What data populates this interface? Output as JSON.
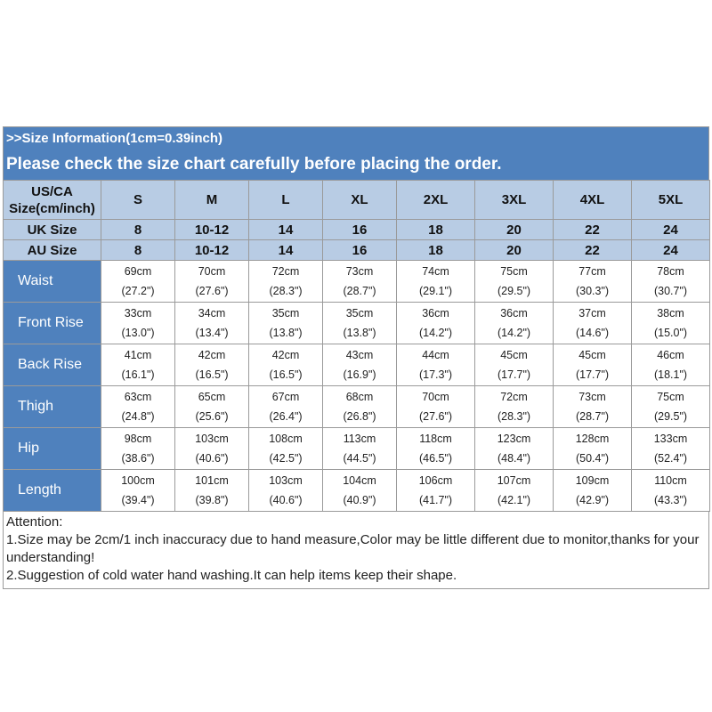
{
  "header": {
    "info_line": ">>Size Information(1cm=0.39inch)",
    "notice_line": "Please check the size chart carefully before placing the order."
  },
  "size_rows": [
    {
      "label": "US/CA\nSize(cm/inch)",
      "values": [
        "S",
        "M",
        "L",
        "XL",
        "2XL",
        "3XL",
        "4XL",
        "5XL"
      ]
    },
    {
      "label": "UK Size",
      "values": [
        "8",
        "10-12",
        "14",
        "16",
        "18",
        "20",
        "22",
        "24"
      ]
    },
    {
      "label": "AU Size",
      "values": [
        "8",
        "10-12",
        "14",
        "16",
        "18",
        "20",
        "22",
        "24"
      ]
    }
  ],
  "measurements": [
    {
      "label": "Waist",
      "cm": [
        "69cm",
        "70cm",
        "72cm",
        "73cm",
        "74cm",
        "75cm",
        "77cm",
        "78cm"
      ],
      "inch": [
        "(27.2\")",
        "(27.6\")",
        "(28.3\")",
        "(28.7\")",
        "(29.1\")",
        "(29.5\")",
        "(30.3\")",
        "(30.7\")"
      ]
    },
    {
      "label": "Front Rise",
      "cm": [
        "33cm",
        "34cm",
        "35cm",
        "35cm",
        "36cm",
        "36cm",
        "37cm",
        "38cm"
      ],
      "inch": [
        "(13.0\")",
        "(13.4\")",
        "(13.8\")",
        "(13.8\")",
        "(14.2\")",
        "(14.2\")",
        "(14.6\")",
        "(15.0\")"
      ]
    },
    {
      "label": "Back Rise",
      "cm": [
        "41cm",
        "42cm",
        "42cm",
        "43cm",
        "44cm",
        "45cm",
        "45cm",
        "46cm"
      ],
      "inch": [
        "(16.1\")",
        "(16.5\")",
        "(16.5\")",
        "(16.9\")",
        "(17.3\")",
        "(17.7\")",
        "(17.7\")",
        "(18.1\")"
      ]
    },
    {
      "label": "Thigh",
      "cm": [
        "63cm",
        "65cm",
        "67cm",
        "68cm",
        "70cm",
        "72cm",
        "73cm",
        "75cm"
      ],
      "inch": [
        "(24.8\")",
        "(25.6\")",
        "(26.4\")",
        "(26.8\")",
        "(27.6\")",
        "(28.3\")",
        "(28.7\")",
        "(29.5\")"
      ]
    },
    {
      "label": "Hip",
      "cm": [
        "98cm",
        "103cm",
        "108cm",
        "113cm",
        "118cm",
        "123cm",
        "128cm",
        "133cm"
      ],
      "inch": [
        "(38.6\")",
        "(40.6\")",
        "(42.5\")",
        "(44.5\")",
        "(46.5\")",
        "(48.4\")",
        "(50.4\")",
        "(52.4\")"
      ]
    },
    {
      "label": "Length",
      "cm": [
        "100cm",
        "101cm",
        "103cm",
        "104cm",
        "106cm",
        "107cm",
        "109cm",
        "110cm"
      ],
      "inch": [
        "(39.4\")",
        "(39.8\")",
        "(40.6\")",
        "(40.9\")",
        "(41.7\")",
        "(42.1\")",
        "(42.9\")",
        "(43.3\")"
      ]
    }
  ],
  "notes": {
    "title": "Attention:",
    "line1": "1.Size may be 2cm/1 inch inaccuracy due to hand measure,Color may be little different due to monitor,thanks for your understanding!",
    "line2": "2.Suggestion of cold water hand washing.It can help items keep their shape."
  },
  "colors": {
    "header_blue": "#4f81bd",
    "size_row_blue": "#b8cce4",
    "border_gray": "#9a9a9a"
  }
}
